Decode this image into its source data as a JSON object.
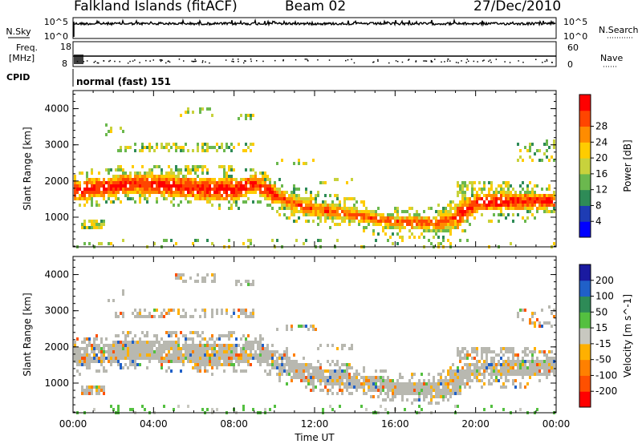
{
  "header": {
    "station": "Falkland Islands (fitACF)",
    "beam": "Beam 02",
    "date": "27/Dec/2010"
  },
  "side_labels": {
    "nsky": "N.Sky",
    "freq": "Freq.",
    "freq_unit": "[MHz]",
    "cpid": "CPID",
    "nsearch": "N.Search",
    "nave": "Nave",
    "mode": "normal (fast) 151"
  },
  "colors": {
    "power_scale": [
      "#0000ff",
      "#1e3cb4",
      "#2e8b57",
      "#6bb84e",
      "#c8d23c",
      "#ffcc00",
      "#ff8c00",
      "#ff4500",
      "#ff0000"
    ],
    "velocity_scale": [
      "#1a1aa0",
      "#2060c8",
      "#2e8b57",
      "#54c040",
      "#c8c8c0",
      "#ffb000",
      "#ff8000",
      "#ff5000",
      "#ff0000"
    ],
    "ground_scatter": "#b8b8b0"
  },
  "chart_data": [
    {
      "type": "line",
      "title": "N.Sky / N.Search",
      "ylabel": "N.Sky",
      "y2label": "N.Search",
      "yticks": [
        "10^5",
        "10^0"
      ],
      "y2ticks": [
        "10^5",
        "10^0"
      ],
      "x": [
        "00:00",
        "04:00",
        "08:00",
        "12:00",
        "16:00",
        "20:00",
        "00:00"
      ]
    },
    {
      "type": "scatter",
      "title": "Freq / Nave",
      "ylabel": "Freq. [MHz]",
      "yticks": [
        "18",
        "8"
      ],
      "y2label": "Nave",
      "y2ticks": [
        "60",
        "0"
      ],
      "cpid": "normal (fast) 151"
    },
    {
      "type": "heatmap",
      "title": "Power",
      "xlabel": "",
      "ylabel": "Slant Range [km]",
      "yticks": [
        1000,
        2000,
        3000,
        4000
      ],
      "colorbar_label": "Power [dB]",
      "colorbar_ticks": [
        4,
        8,
        12,
        16,
        20,
        24,
        28
      ],
      "x_range_hours": [
        0,
        24
      ],
      "y_range_km": [
        180,
        4500
      ],
      "echo_bands": [
        {
          "name": "main band",
          "points": [
            [
              0,
              1500,
              2050
            ],
            [
              3,
              1700,
              2250
            ],
            [
              6,
              1550,
              2150
            ],
            [
              8,
              1500,
              2100
            ],
            [
              9,
              1700,
              2200
            ],
            [
              10,
              1400,
              1900
            ],
            [
              11,
              1150,
              1650
            ],
            [
              12,
              1050,
              1500
            ],
            [
              14,
              900,
              1300
            ],
            [
              16,
              700,
              1100
            ],
            [
              18,
              650,
              1100
            ],
            [
              19,
              700,
              1400
            ],
            [
              20,
              1200,
              1700
            ],
            [
              22,
              1250,
              1700
            ],
            [
              24,
              1300,
              1700
            ]
          ]
        }
      ]
    },
    {
      "type": "heatmap",
      "title": "Velocity",
      "xlabel": "Time UT",
      "ylabel": "Slant Range [km]",
      "yticks": [
        1000,
        2000,
        3000,
        4000
      ],
      "colorbar_label": "Velocity [m s^-1]",
      "colorbar_ticks": [
        200,
        100,
        50,
        15,
        -15,
        -50,
        -100,
        -200
      ],
      "x_ticks": [
        "00:00",
        "04:00",
        "08:00",
        "12:00",
        "16:00",
        "20:00",
        "00:00"
      ]
    }
  ]
}
